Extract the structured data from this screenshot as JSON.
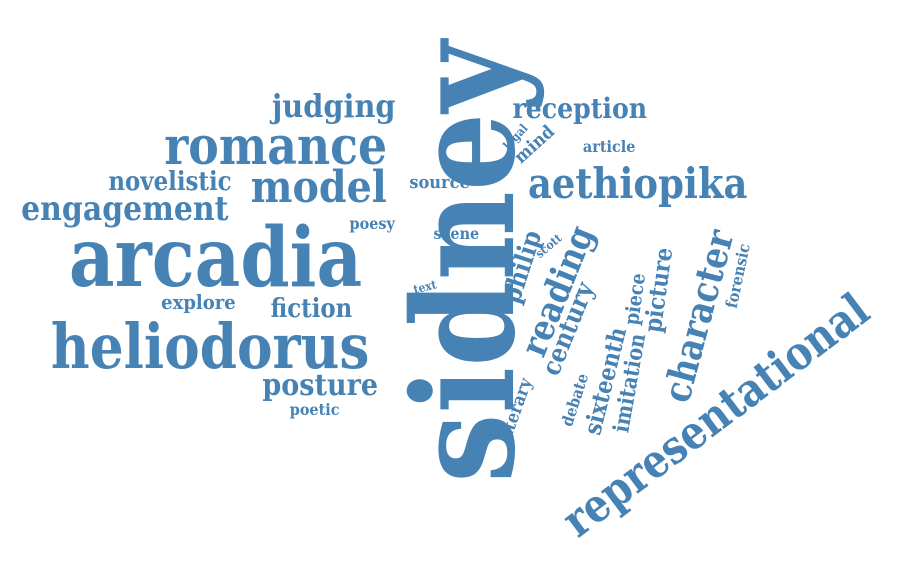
{
  "cloud": {
    "color": "#4682b4",
    "words": [
      {
        "key": "sidney",
        "text": "sidney"
      },
      {
        "key": "arcadia",
        "text": "arcadia"
      },
      {
        "key": "heliodorus",
        "text": "heliodorus"
      },
      {
        "key": "romance",
        "text": "romance"
      },
      {
        "key": "representational",
        "text": "representational"
      },
      {
        "key": "aethiopika",
        "text": "aethiopika"
      },
      {
        "key": "model",
        "text": "model"
      },
      {
        "key": "engagement",
        "text": "engagement"
      },
      {
        "key": "judging",
        "text": "judging"
      },
      {
        "key": "reception",
        "text": "reception"
      },
      {
        "key": "novelistic",
        "text": "novelistic"
      },
      {
        "key": "character",
        "text": "character"
      },
      {
        "key": "reading",
        "text": "reading"
      },
      {
        "key": "posture",
        "text": "posture"
      },
      {
        "key": "century",
        "text": "century"
      },
      {
        "key": "philip",
        "text": "philip"
      },
      {
        "key": "fiction",
        "text": "fiction"
      },
      {
        "key": "picture",
        "text": "picture"
      },
      {
        "key": "sixteenth",
        "text": "sixteenth"
      },
      {
        "key": "imitation",
        "text": "imitation"
      },
      {
        "key": "literary",
        "text": "literary"
      },
      {
        "key": "explore",
        "text": "explore"
      },
      {
        "key": "source",
        "text": "source"
      },
      {
        "key": "poesy",
        "text": "poesy"
      },
      {
        "key": "scene",
        "text": "scene"
      },
      {
        "key": "poetic",
        "text": "poetic"
      },
      {
        "key": "mind",
        "text": "mind"
      },
      {
        "key": "article",
        "text": "article"
      },
      {
        "key": "piece",
        "text": "piece"
      },
      {
        "key": "debate",
        "text": "debate"
      },
      {
        "key": "forensic",
        "text": "forensic"
      },
      {
        "key": "legal",
        "text": "legal"
      },
      {
        "key": "text",
        "text": "text"
      },
      {
        "key": "scott",
        "text": "scott"
      }
    ]
  }
}
